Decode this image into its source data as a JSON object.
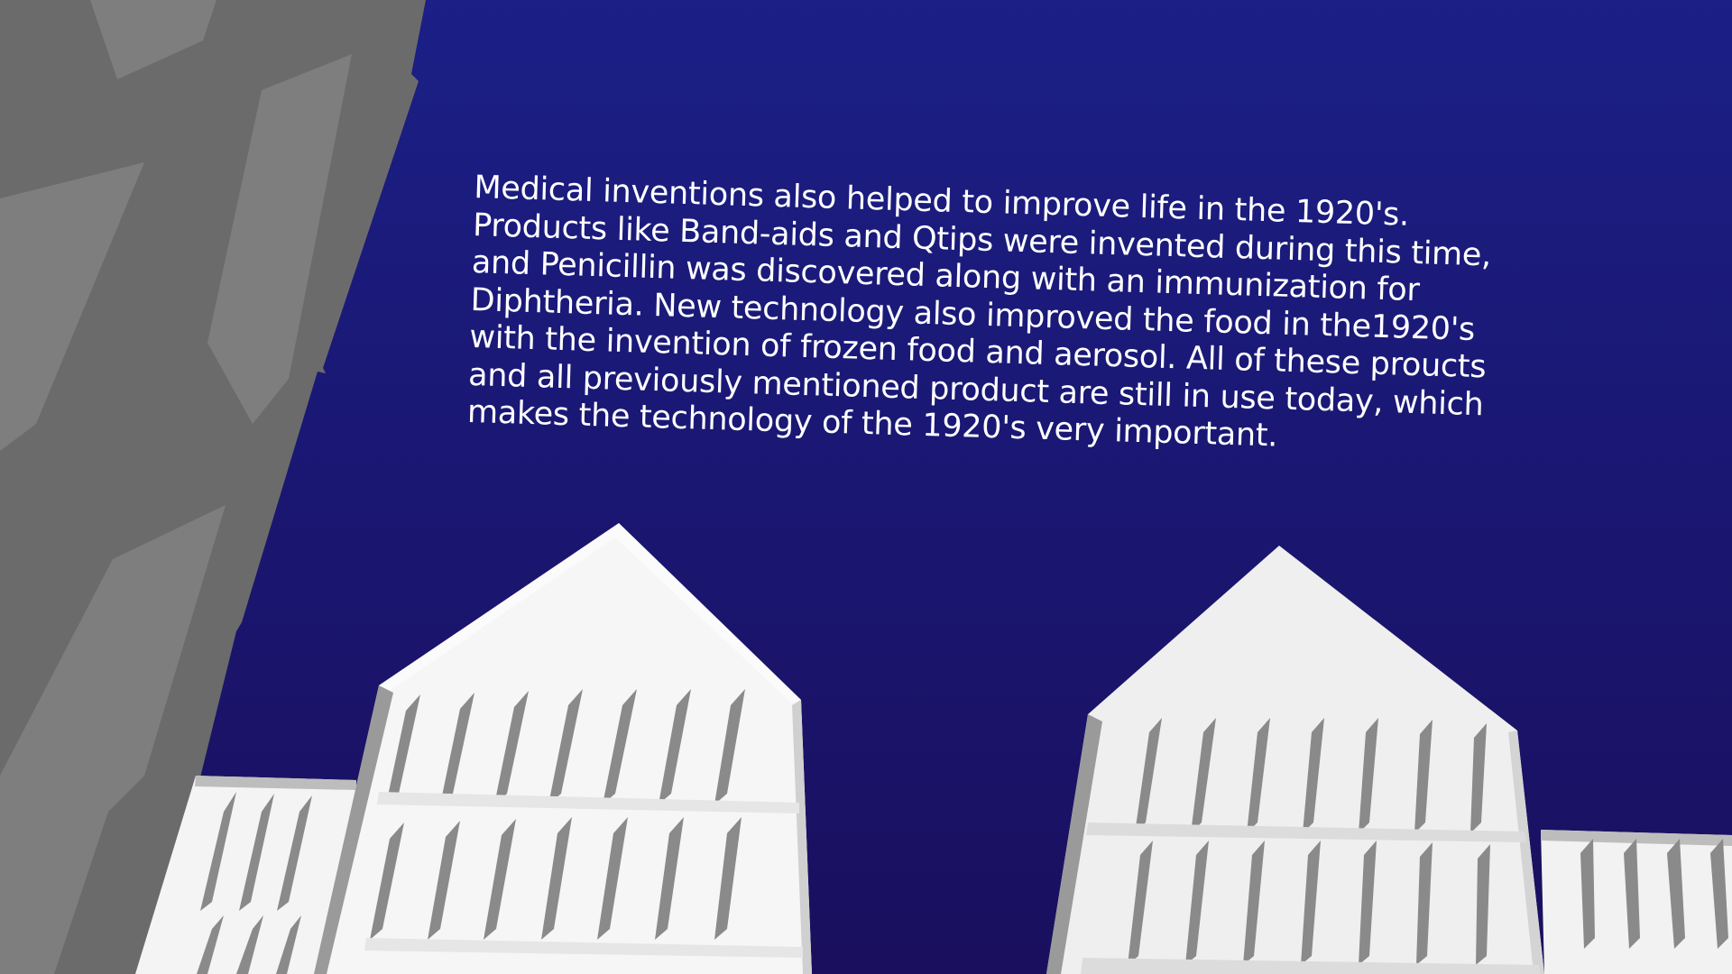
{
  "slide": {
    "background_top": "#1b1f86",
    "background_bottom": "#1a0f5e",
    "paragraph_lines": [
      "Medical inventions also helped to improve life in the 1920's.",
      "Products like Band-aids and Qtips were invented during this time,",
      "and Penicillin was discovered along with an immunization for",
      "Diphtheria.  New technology also improved the food in the1920's",
      "with the invention of frozen food and aerosol.  All of these proucts",
      "and all previously mentioned product are still in use today, which",
      "makes the technology of the 1920's very important."
    ]
  },
  "decor": {
    "left_wall_color": "#6b6b6b",
    "left_wall_panel_color": "#7e7e7e",
    "building_face_color": "#f4f4f4",
    "building_shadow_color": "#8a8a8a",
    "building_right_face_color": "#e6e6e6"
  }
}
